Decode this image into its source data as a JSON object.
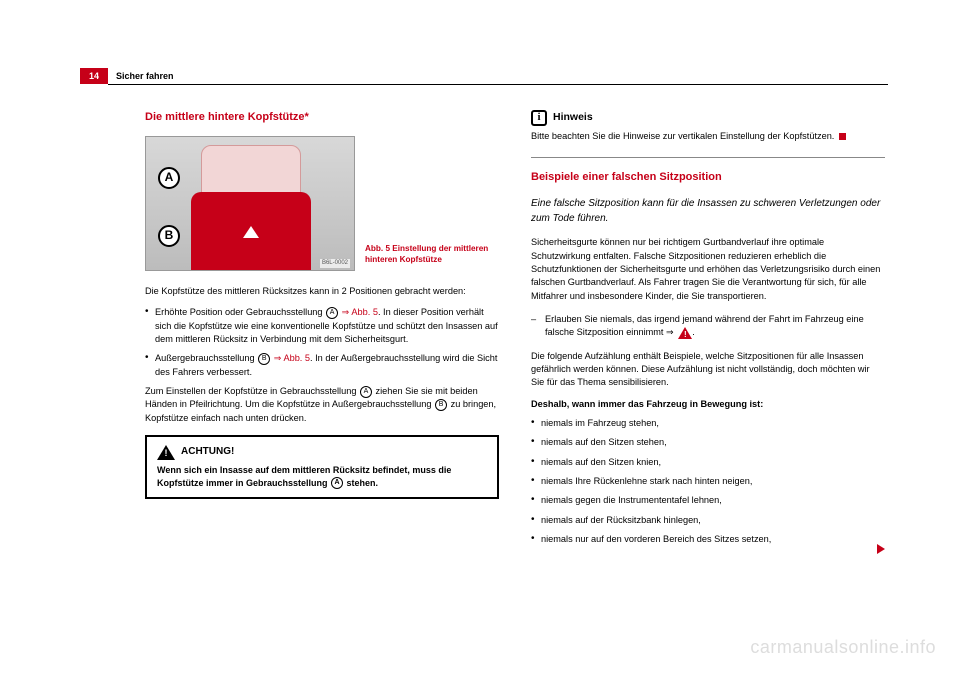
{
  "header": {
    "page_number": "14",
    "section": "Sicher fahren"
  },
  "left": {
    "title": "Die mittlere hintere Kopfstütze*",
    "figure": {
      "badge_a": "A",
      "badge_b": "B",
      "ref": "B6L-0002",
      "caption": "Abb. 5  Einstellung der mittleren hinteren Kopfstütze"
    },
    "p1": "Die Kopfstütze des mittleren Rücksitzes kann in 2 Positionen gebracht werden:",
    "bul1_pre": "Erhöhte Position oder Gebrauchsstellung ",
    "bul1_ref": " ⇒ Abb. 5",
    "bul1_post": ". In dieser Position verhält sich die Kopfstütze wie eine konventionelle Kopfstütze und schützt den Insassen auf dem mittleren Rücksitz in Verbindung mit dem Sicherheitsgurt.",
    "bul2_pre": "Außergebrauchsstellung ",
    "bul2_ref": " ⇒ Abb. 5",
    "bul2_post": ". In der Außergebrauchsstellung wird die Sicht des Fahrers verbessert.",
    "p2_pre": "Zum Einstellen der Kopfstütze in Gebrauchsstellung ",
    "p2_mid": " ziehen Sie sie mit beiden Händen in Pfeilrichtung. Um die Kopfstütze in Außergebrauchsstellung ",
    "p2_post": " zu bringen, Kopfstütze einfach nach unten drücken.",
    "achtung_title": "ACHTUNG!",
    "achtung_body": "Wenn sich ein Insasse auf dem mittleren Rücksitz befindet, muss die Kopfstütze immer in Gebrauchsstellung ",
    "achtung_end": " stehen."
  },
  "right": {
    "hinweis_title": "Hinweis",
    "hinweis_body": "Bitte beachten Sie die Hinweise zur vertikalen Einstellung der Kopfstützen. ",
    "section_title": "Beispiele einer falschen Sitzposition",
    "lead": "Eine falsche Sitzposition kann für die Insassen zu schweren Verletzungen oder zum Tode führen.",
    "p1": "Sicherheitsgurte können nur bei richtigem Gurtbandverlauf ihre optimale Schutzwirkung entfalten. Falsche Sitzpositionen reduzieren erheblich die Schutzfunktionen der Sicherheitsgurte und erhöhen das Verletzungsrisiko durch einen falschen Gurtbandverlauf. Als Fahrer tragen Sie die Verantwortung für sich, für alle Mitfahrer und insbesondere Kinder, die Sie transportieren.",
    "dash1": "Erlauben Sie niemals, das irgend jemand während der Fahrt im Fahrzeug eine falsche Sitzposition einnimmt ⇒ ",
    "dash1_post": ".",
    "p2": "Die folgende Aufzählung enthält Beispiele, welche Sitzpositionen für alle Insassen gefährlich werden können. Diese Aufzählung ist nicht vollständig, doch möchten wir Sie für das Thema sensibilisieren.",
    "bold": "Deshalb, wann immer das Fahrzeug in Bewegung ist:",
    "b1": "niemals im Fahrzeug stehen,",
    "b2": "niemals auf den Sitzen stehen,",
    "b3": "niemals auf den Sitzen knien,",
    "b4": "niemals Ihre Rückenlehne stark nach hinten neigen,",
    "b5": "niemals gegen die Instrumententafel lehnen,",
    "b6": "niemals auf der Rücksitzbank hinlegen,",
    "b7": "niemals nur auf den vorderen Bereich des Sitzes setzen,"
  },
  "badges": {
    "A": "A",
    "B": "B"
  },
  "watermark": "carmanualsonline.info"
}
